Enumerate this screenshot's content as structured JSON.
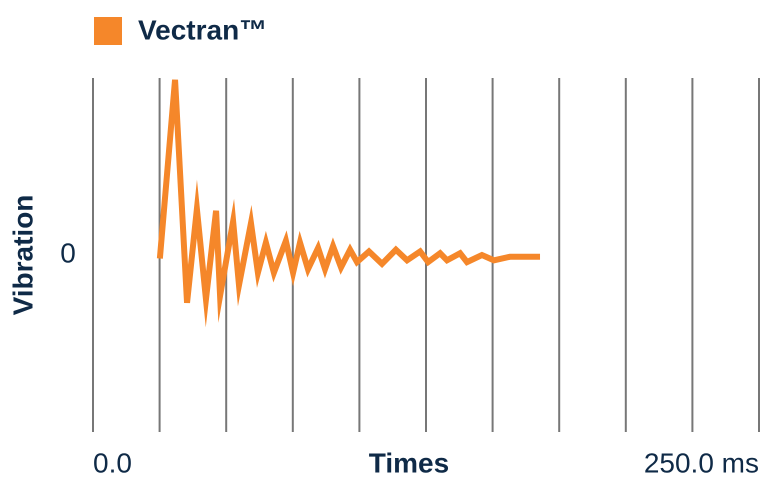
{
  "chart_data": {
    "type": "line",
    "x_label": "Times",
    "y_label": "Vibration",
    "xlim": [
      0,
      250
    ],
    "ylim": [
      -1,
      1
    ],
    "xticks": [
      {
        "value": 0,
        "label": "0.0"
      },
      {
        "value": 250,
        "label": "250.0 ms"
      }
    ],
    "xgrid": [
      0,
      25,
      50,
      75,
      100,
      125,
      150,
      175,
      200,
      225,
      250
    ],
    "yticks": [
      0
    ],
    "grid": true,
    "legend": "top-left",
    "series": [
      {
        "name": "Vectran™",
        "color": "#f5872a",
        "x": [
          25.1,
          30.8,
          35.3,
          39.0,
          42.4,
          46.2,
          47.7,
          52.6,
          54.8,
          59.3,
          61.9,
          64.9,
          67.9,
          72.4,
          75.1,
          77.7,
          80.7,
          84.5,
          87.1,
          90.1,
          93.1,
          96.5,
          99.1,
          103.6,
          108.5,
          113.7,
          117.9,
          122.8,
          125.8,
          130.3,
          132.9,
          137.8,
          140.4,
          146.0,
          150.5,
          156.5,
          167.8
        ],
        "values": [
          -0.02,
          0.99,
          -0.27,
          0.26,
          -0.25,
          0.25,
          -0.23,
          0.19,
          -0.17,
          0.18,
          -0.1,
          0.07,
          -0.1,
          0.08,
          -0.1,
          0.07,
          -0.08,
          0.04,
          -0.08,
          0.05,
          -0.07,
          0.03,
          -0.04,
          0.02,
          -0.05,
          0.03,
          -0.03,
          0.02,
          -0.04,
          0.01,
          -0.03,
          0.01,
          -0.04,
          0.0,
          -0.03,
          -0.01,
          -0.01
        ]
      }
    ]
  }
}
